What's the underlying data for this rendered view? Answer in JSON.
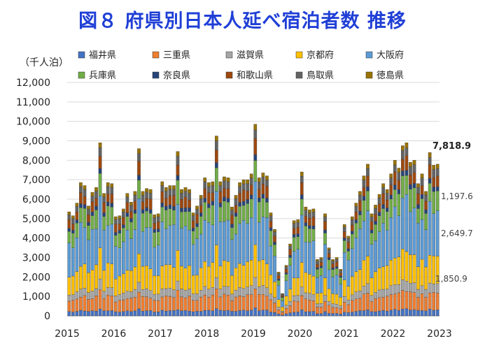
{
  "title": "図８ 府県別日本人延べ宿泊者数 推移",
  "chart_data": {
    "type": "bar",
    "stacked": true,
    "unit_label": "（千人泊）",
    "ylim": [
      0,
      12000
    ],
    "yticks": [
      "0",
      "1,000",
      "2,000",
      "3,000",
      "4,000",
      "5,000",
      "6,000",
      "7,000",
      "8,000",
      "9,000",
      "10,000",
      "11,000",
      "12,000"
    ],
    "xticks": [
      "2015",
      "2016",
      "2017",
      "2018",
      "2019",
      "2020",
      "2021",
      "2022",
      "2023"
    ],
    "grid": true,
    "legend_position": "top",
    "annotations": [
      {
        "label": "7,818.9",
        "value": 7818.9,
        "bold": true
      },
      {
        "label": "1,197.6",
        "value": 1197.6
      },
      {
        "label": "2,649.7",
        "value": 2649.7
      },
      {
        "label": "1,850.9",
        "value": 1850.9
      }
    ],
    "series": [
      {
        "name": "福井県",
        "color": "#4472c4"
      },
      {
        "name": "三重県",
        "color": "#ed7d31"
      },
      {
        "name": "滋賀県",
        "color": "#a5a5a5"
      },
      {
        "name": "京都府",
        "color": "#ffc000"
      },
      {
        "name": "大阪府",
        "color": "#5b9bd5"
      },
      {
        "name": "兵庫県",
        "color": "#70ad47"
      },
      {
        "name": "奈良県",
        "color": "#264478"
      },
      {
        "name": "和歌山県",
        "color": "#9e480e"
      },
      {
        "name": "鳥取県",
        "color": "#636363"
      },
      {
        "name": "徳島県",
        "color": "#997300"
      }
    ],
    "totals": [
      5350,
      5150,
      5800,
      6850,
      6700,
      5650,
      6350,
      6600,
      8900,
      6300,
      6850,
      6800,
      5100,
      5150,
      5500,
      6300,
      5850,
      6400,
      8600,
      6400,
      6550,
      6500,
      5200,
      5250,
      6900,
      6600,
      6700,
      6700,
      8450,
      6500,
      6600,
      6500,
      5300,
      5650,
      6200,
      7100,
      6850,
      6900,
      9250,
      6900,
      7150,
      7100,
      5600,
      6200,
      6850,
      7000,
      7000,
      7300,
      9850,
      7100,
      7350,
      7200,
      5300,
      4450,
      2250,
      1150,
      2600,
      3700,
      4900,
      4950,
      7400,
      5600,
      5450,
      5500,
      2900,
      3000,
      5250,
      3500,
      2900,
      3000,
      2400,
      4700,
      4100,
      5100,
      5800,
      6400,
      7200,
      7800,
      5250,
      5700,
      6250,
      6800,
      6500,
      7300,
      8000,
      7600,
      8750,
      8900,
      7900,
      8000,
      6800,
      7300,
      6400,
      8400,
      7750,
      7800
    ],
    "shares": [
      0.04,
      0.11,
      0.06,
      0.18,
      0.3,
      0.13,
      0.03,
      0.07,
      0.05,
      0.03
    ]
  }
}
